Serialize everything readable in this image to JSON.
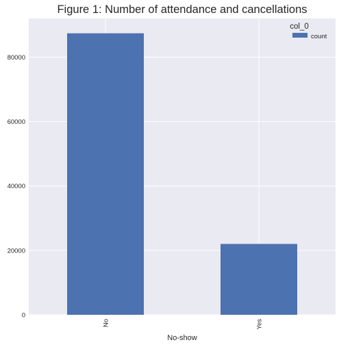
{
  "chart_data": {
    "type": "bar",
    "title": "Figure 1: Number of attendance and cancellations",
    "xlabel": "No-show",
    "ylabel": "",
    "categories": [
      "No",
      "Yes"
    ],
    "series": [
      {
        "name": "count",
        "values": [
          87400,
          22000
        ]
      }
    ],
    "ylim": [
      0,
      92000
    ],
    "yticks": [
      0,
      20000,
      40000,
      60000,
      80000
    ],
    "ytick_labels": [
      "0",
      "20000",
      "40000",
      "60000",
      "80000"
    ],
    "legend": {
      "title": "col_0",
      "position": "top-right"
    },
    "grid": true,
    "colors": {
      "bar": "#4c72b0",
      "plot_background": "#eaeaf2",
      "grid": "#ffffff",
      "text": "#262626"
    }
  }
}
